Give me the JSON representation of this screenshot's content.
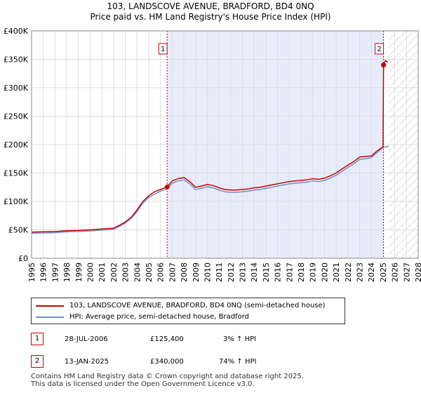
{
  "chart_data": {
    "type": "line",
    "title": "103, LANDSCOVE AVENUE, BRADFORD, BD4 0NQ",
    "subtitle": "Price paid vs. HM Land Registry's House Price Index (HPI)",
    "xlim": [
      1995,
      2028
    ],
    "ylim": [
      0,
      400000
    ],
    "y_ticks": [
      0,
      50000,
      100000,
      150000,
      200000,
      250000,
      300000,
      350000,
      400000
    ],
    "y_tick_labels": [
      "£0",
      "£50K",
      "£100K",
      "£150K",
      "£200K",
      "£250K",
      "£300K",
      "£350K",
      "£400K"
    ],
    "x_ticks": [
      1995,
      1996,
      1997,
      1998,
      1999,
      2000,
      2001,
      2002,
      2003,
      2004,
      2005,
      2006,
      2007,
      2008,
      2009,
      2010,
      2011,
      2012,
      2013,
      2014,
      2015,
      2016,
      2017,
      2018,
      2019,
      2020,
      2021,
      2022,
      2023,
      2024,
      2025,
      2026,
      2027,
      2028
    ],
    "x_tick_labels": [
      "1995",
      "1996",
      "1997",
      "1998",
      "1999",
      "2000",
      "2001",
      "2002",
      "2003",
      "2004",
      "2005",
      "2006",
      "2007",
      "2008",
      "2009",
      "2010",
      "2011",
      "2012",
      "2013",
      "2014",
      "2015",
      "2016",
      "2017",
      "2018",
      "2019",
      "2020",
      "2021",
      "2022",
      "2023",
      "2024",
      "2025",
      "2026",
      "2027",
      "2028"
    ],
    "shaded_period": [
      2006.57,
      2025.04
    ],
    "forecast_hatch_from": 2025.5,
    "series": [
      {
        "name": "103, LANDSCOVE AVENUE, BRADFORD, BD4 0NQ (semi-detached house)",
        "color": "#cc0000",
        "x": [
          1995.0,
          1996.0,
          1997.0,
          1998.0,
          1999.0,
          2000.0,
          2001.0,
          2002.0,
          2002.5,
          2003.0,
          2003.5,
          2004.0,
          2004.5,
          2005.0,
          2005.5,
          2006.0,
          2006.57,
          2007.0,
          2007.5,
          2008.0,
          2008.5,
          2009.0,
          2009.5,
          2010.0,
          2010.5,
          2011.0,
          2011.5,
          2012.0,
          2012.5,
          2013.0,
          2013.5,
          2014.0,
          2014.5,
          2015.0,
          2015.5,
          2016.0,
          2016.5,
          2017.0,
          2017.5,
          2018.0,
          2018.5,
          2019.0,
          2019.5,
          2020.0,
          2020.5,
          2021.0,
          2021.5,
          2022.0,
          2022.5,
          2023.0,
          2023.5,
          2024.0,
          2024.5,
          2025.0,
          2025.04,
          2025.2,
          2025.4
        ],
        "values": [
          46000,
          46500,
          47000,
          48500,
          49000,
          50000,
          51500,
          53000,
          58000,
          64000,
          72000,
          85000,
          100000,
          110000,
          117000,
          121000,
          125400,
          136000,
          140000,
          142000,
          135000,
          125000,
          127000,
          130000,
          128000,
          124000,
          121000,
          120000,
          120000,
          121000,
          122000,
          124000,
          125000,
          127000,
          129000,
          131000,
          133000,
          135000,
          136000,
          137000,
          138000,
          140000,
          139000,
          141000,
          145000,
          150000,
          157000,
          164000,
          170000,
          178000,
          179000,
          180000,
          189000,
          196000,
          340000,
          348000,
          345000
        ]
      },
      {
        "name": "HPI: Average price, semi-detached house, Bradford",
        "color": "#6d8fc9",
        "x": [
          1995.0,
          1996.0,
          1997.0,
          1998.0,
          1999.0,
          2000.0,
          2001.0,
          2002.0,
          2002.5,
          2003.0,
          2003.5,
          2004.0,
          2004.5,
          2005.0,
          2005.5,
          2006.0,
          2006.57,
          2007.0,
          2007.5,
          2008.0,
          2008.5,
          2009.0,
          2009.5,
          2010.0,
          2010.5,
          2011.0,
          2011.5,
          2012.0,
          2012.5,
          2013.0,
          2013.5,
          2014.0,
          2014.5,
          2015.0,
          2015.5,
          2016.0,
          2016.5,
          2017.0,
          2017.5,
          2018.0,
          2018.5,
          2019.0,
          2019.5,
          2020.0,
          2020.5,
          2021.0,
          2021.5,
          2022.0,
          2022.5,
          2023.0,
          2023.5,
          2024.0,
          2024.5,
          2025.0,
          2025.5
        ],
        "values": [
          44000,
          44500,
          45000,
          46500,
          47000,
          48000,
          49500,
          51000,
          56000,
          62000,
          70000,
          82000,
          97000,
          107000,
          113000,
          118000,
          121800,
          132000,
          136000,
          138000,
          131000,
          121000,
          123000,
          126000,
          124000,
          120000,
          117000,
          116000,
          116000,
          117000,
          118000,
          120000,
          121000,
          123000,
          125000,
          127000,
          129000,
          131000,
          132000,
          133000,
          134000,
          136000,
          135000,
          137000,
          141000,
          146000,
          153000,
          160000,
          166000,
          174000,
          175000,
          177000,
          186000,
          195000,
          197000
        ]
      }
    ],
    "sale_points": [
      {
        "label": "1",
        "x": 2006.57,
        "value": 125400
      },
      {
        "label": "2",
        "x": 2025.04,
        "value": 340000
      }
    ]
  },
  "legend": {
    "property_label": "103, LANDSCOVE AVENUE, BRADFORD, BD4 0NQ (semi-detached house)",
    "hpi_label": "HPI: Average price, semi-detached house, Bradford",
    "property_color": "#cc0000",
    "hpi_color": "#6d8fc9"
  },
  "transactions": [
    {
      "num": "1",
      "date": "28-JUL-2006",
      "price": "£125,400",
      "hpi": "3% ↑ HPI"
    },
    {
      "num": "2",
      "date": "13-JAN-2025",
      "price": "£340,000",
      "hpi": "74% ↑ HPI"
    }
  ],
  "footer": {
    "line1": "Contains HM Land Registry data © Crown copyright and database right 2025.",
    "line2": "This data is licensed under the Open Government Licence v3.0."
  }
}
